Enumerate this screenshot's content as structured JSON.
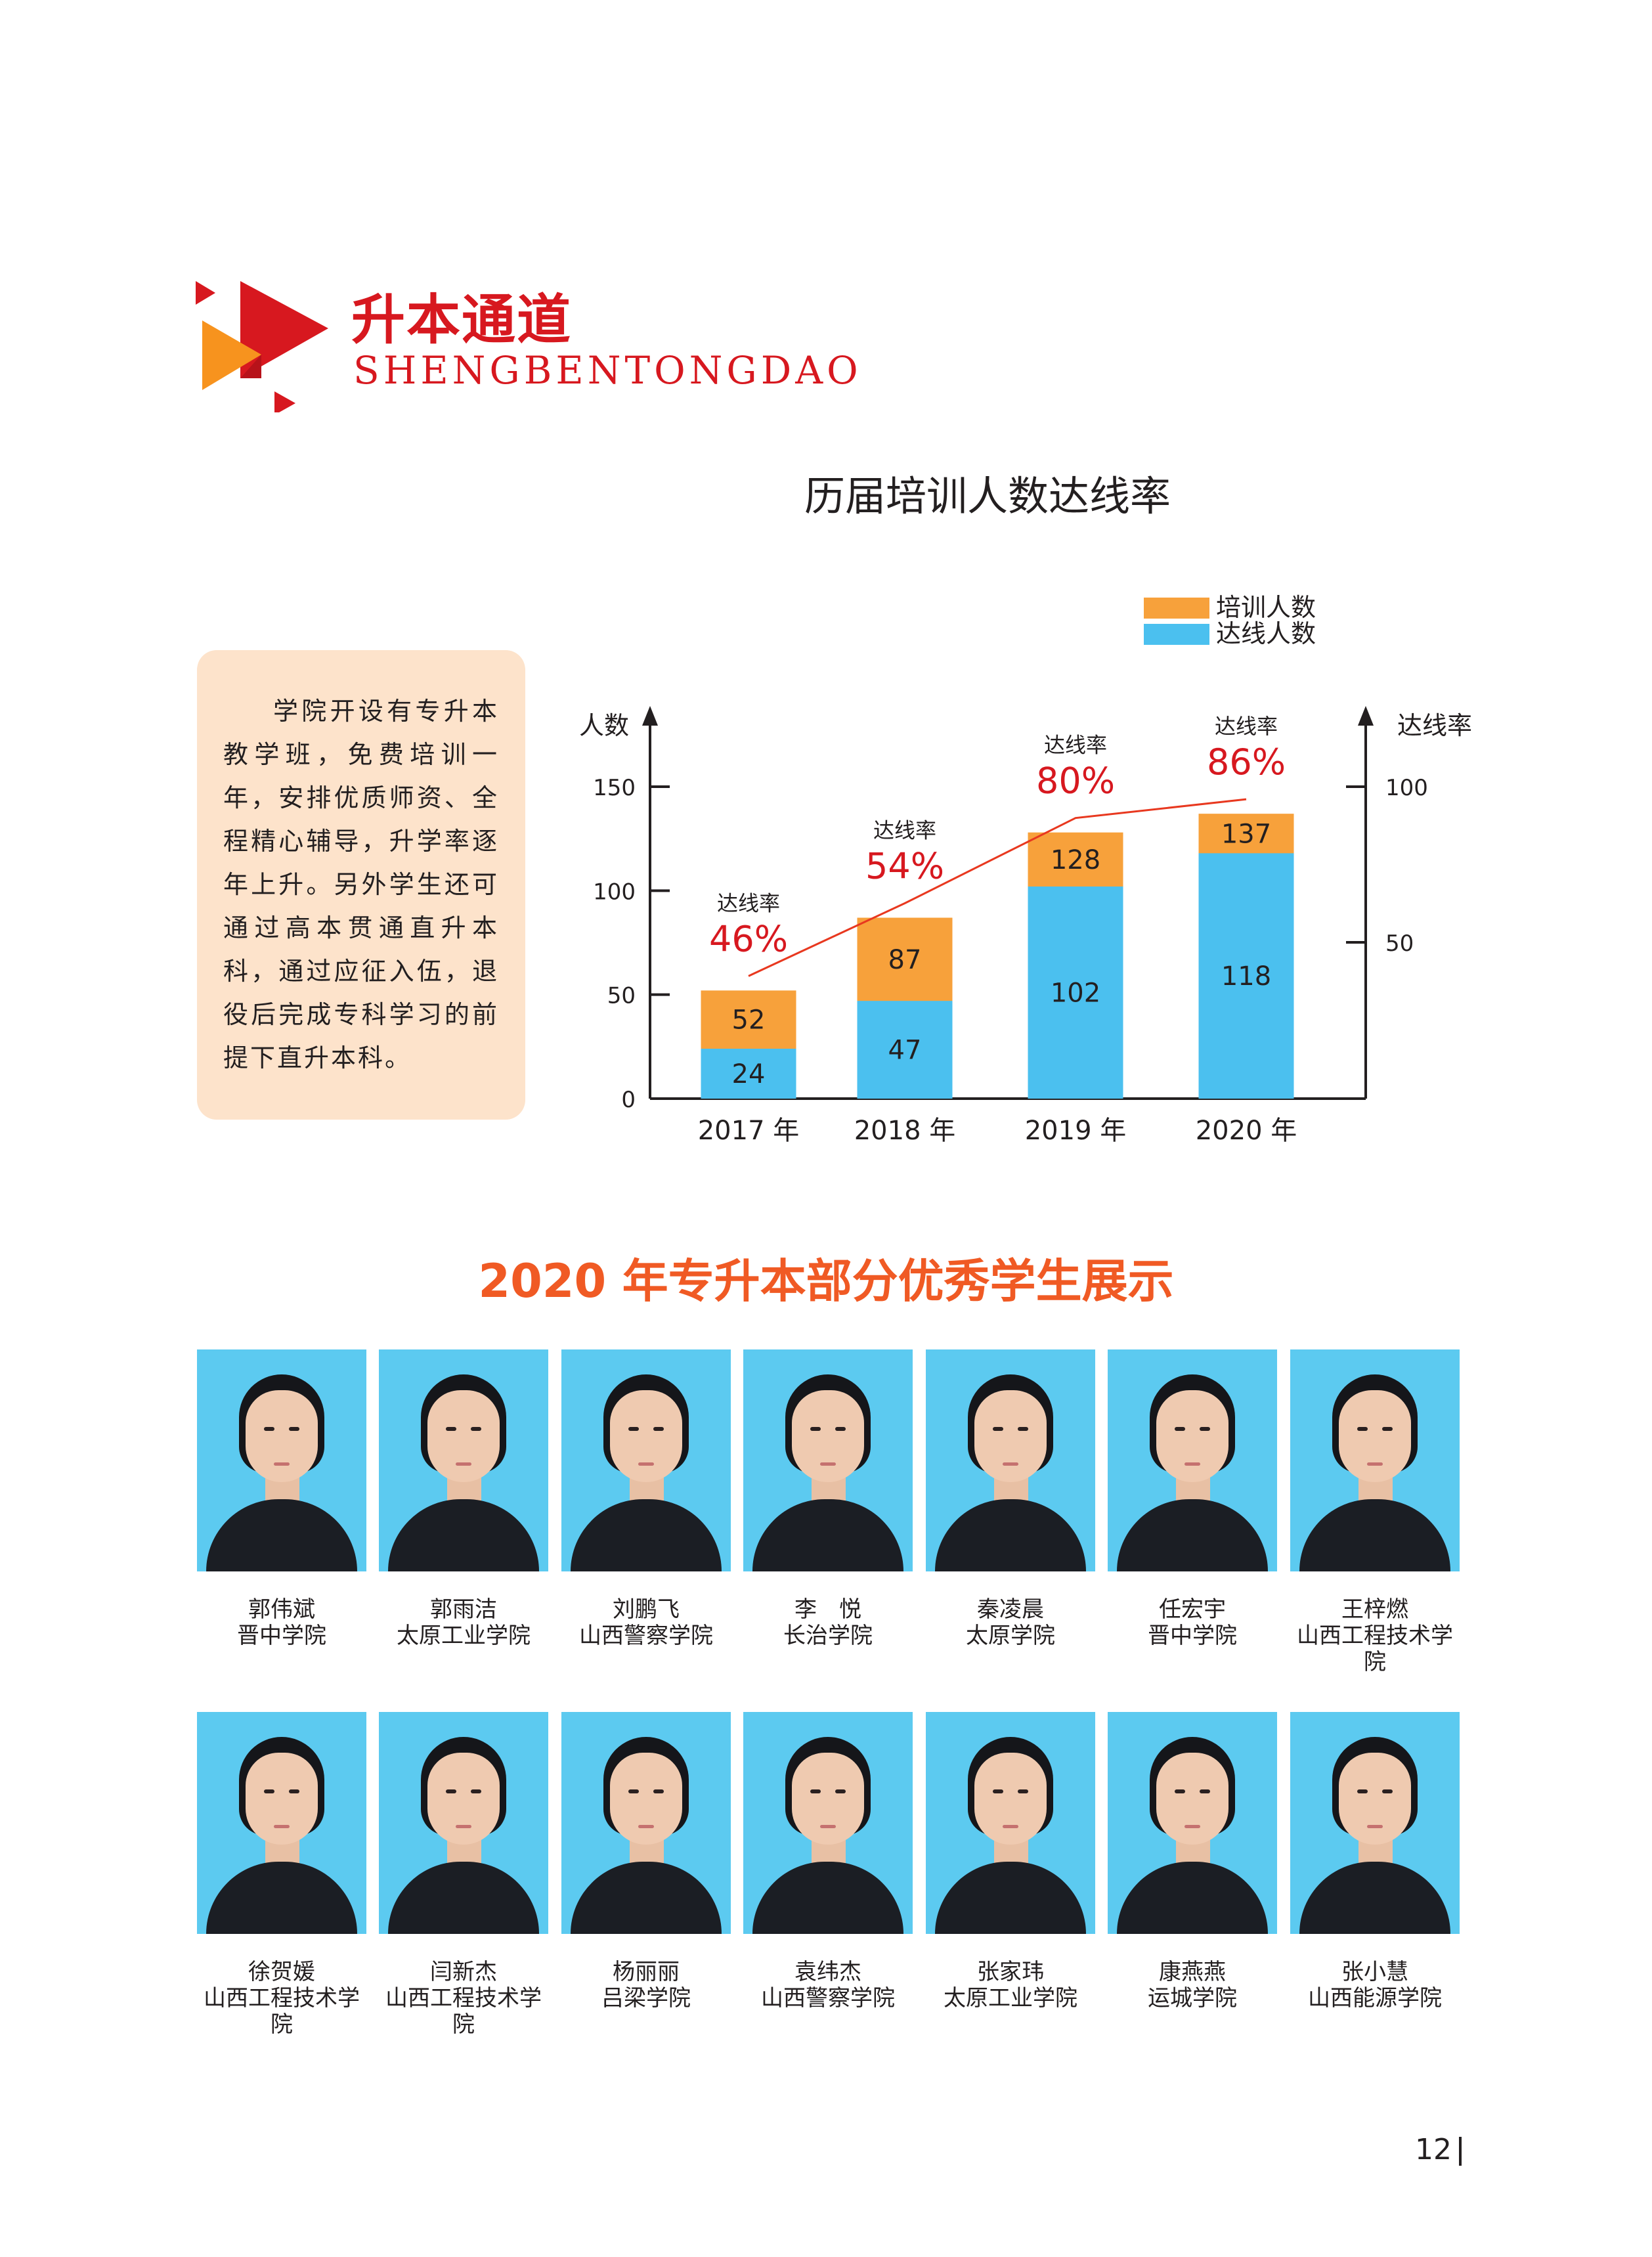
{
  "header": {
    "title": "升本通道",
    "subtitle": "SHENGBENTONGDAO",
    "logo_icon": "red-orange-triangles-logo",
    "accent_color": "#d7181f"
  },
  "info_box": {
    "text": "学院开设有专升本教学班，免费培训一年，安排优质师资、全程精心辅导，升学率逐年上升。另外学生还可通过高本贯通直升本科，通过应征入伍，退役后完成专科学习的前提下直升本科。",
    "background": "#fde3cb"
  },
  "chart_data": {
    "type": "bar",
    "title": "历届培训人数达线率",
    "categories": [
      "2017 年",
      "2018 年",
      "2019 年",
      "2020 年"
    ],
    "series": [
      {
        "name": "培训人数",
        "values": [
          52,
          87,
          128,
          137
        ],
        "color": "#f7a13b"
      },
      {
        "name": "达线人数",
        "values": [
          24,
          47,
          102,
          118
        ],
        "color": "#4bc0ef"
      }
    ],
    "rate_series": {
      "values": [
        46,
        54,
        80,
        86
      ],
      "labels": [
        "46%",
        "54%",
        "80%",
        "86%"
      ],
      "caption": "达线率",
      "color": "#e8381f"
    },
    "ylabel": "人数",
    "ylabel_right": "达线率",
    "ylim": [
      0,
      150
    ],
    "yticks": [
      "0",
      "50",
      "100",
      "150"
    ],
    "ylim_right": [
      0,
      100
    ],
    "yticks_right": [
      "50",
      "100"
    ],
    "legend_position": "top-right",
    "grid": false
  },
  "gallery": {
    "title": "2020 年专升本部分优秀学生展示",
    "photo_bg": "#5ccaf0",
    "students": [
      {
        "name": "郭伟斌",
        "school": "晋中学院"
      },
      {
        "name": "郭雨洁",
        "school": "太原工业学院"
      },
      {
        "name": "刘鹏飞",
        "school": "山西警察学院"
      },
      {
        "name": "李　悦",
        "school": "长治学院"
      },
      {
        "name": "秦凌晨",
        "school": "太原学院"
      },
      {
        "name": "任宏宇",
        "school": "晋中学院"
      },
      {
        "name": "王梓燃",
        "school": "山西工程技术学院"
      },
      {
        "name": "徐贺媛",
        "school": "山西工程技术学院"
      },
      {
        "name": "闫新杰",
        "school": "山西工程技术学院"
      },
      {
        "name": "杨丽丽",
        "school": "吕梁学院"
      },
      {
        "name": "袁纬杰",
        "school": "山西警察学院"
      },
      {
        "name": "张家玮",
        "school": "太原工业学院"
      },
      {
        "name": "康燕燕",
        "school": "运城学院"
      },
      {
        "name": "张小慧",
        "school": "山西能源学院"
      }
    ]
  },
  "page_number": "12"
}
